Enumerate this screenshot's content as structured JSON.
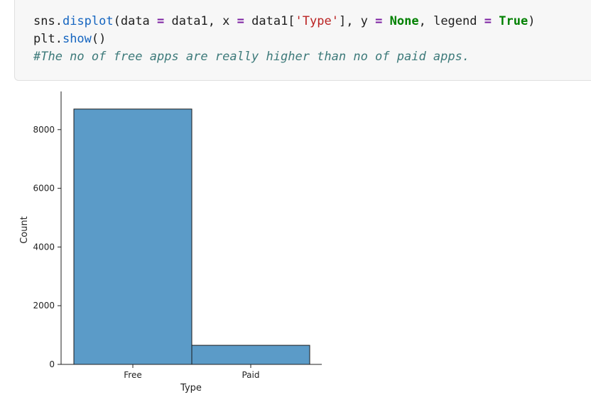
{
  "code_cell": {
    "line1": {
      "t1": "sns.",
      "t2": "displot",
      "t3": "(data ",
      "t4": "=",
      "t5": " data1, x ",
      "t6": "=",
      "t7": " data1[",
      "t8": "'Type'",
      "t9": "], y ",
      "t10": "=",
      "t11": " ",
      "t12": "None",
      "t13": ", legend ",
      "t14": "=",
      "t15": " ",
      "t16": "True",
      "t17": ")"
    },
    "line2": {
      "t1": "plt.",
      "t2": "show",
      "t3": "()"
    },
    "line3": {
      "comment": "#The no of free apps are really higher than no of paid apps."
    }
  },
  "colors": {
    "bar_fill": "#5b9bc8",
    "bar_edge": "#1a1a1a",
    "cell_bg": "#f7f7f7"
  },
  "chart_data": {
    "type": "bar",
    "categories": [
      "Free",
      "Paid"
    ],
    "values": [
      8700,
      650
    ],
    "title": "",
    "xlabel": "Type",
    "ylabel": "Count",
    "ylim": [
      0,
      9300
    ],
    "yticks": [
      0,
      2000,
      4000,
      6000,
      8000
    ],
    "ytick_labels": [
      "0",
      "2000",
      "4000",
      "6000",
      "8000"
    ],
    "grid": false,
    "legend": false
  }
}
